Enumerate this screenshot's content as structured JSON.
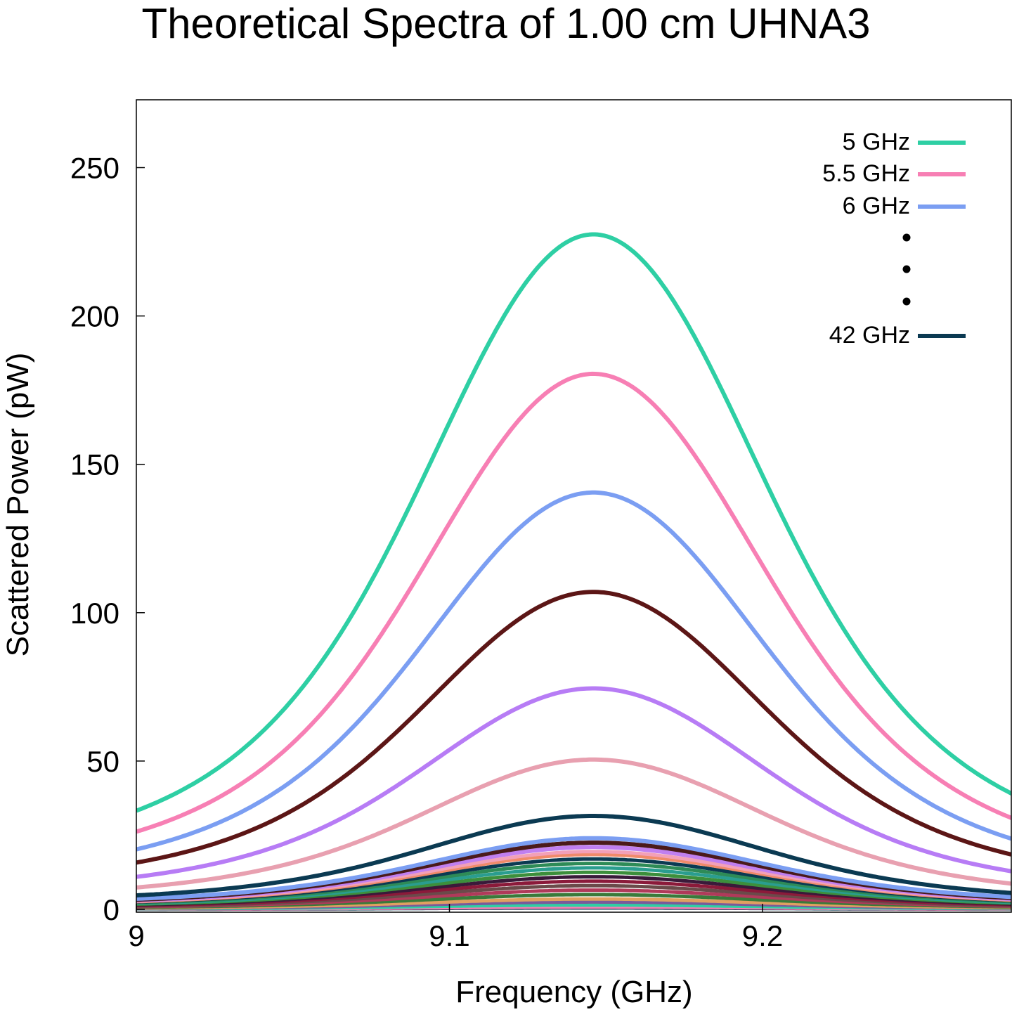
{
  "chart_data": {
    "type": "line",
    "title": "Theoretical Spectra of 1.00 cm UHNA3",
    "xlabel": "Frequency (GHz)",
    "ylabel": "Scattered Power (pW)",
    "xlim": [
      9.0,
      9.28
    ],
    "ylim": [
      0,
      272
    ],
    "xticks": [
      9.0,
      9.1,
      9.2
    ],
    "xtick_labels": [
      "9",
      "9.1",
      "9.2"
    ],
    "yticks": [
      0,
      50,
      100,
      150,
      200,
      250
    ],
    "ytick_labels": [
      "0",
      "50",
      "100",
      "150",
      "200",
      "250"
    ],
    "grid": false,
    "legend_position": "top-right",
    "legend": {
      "entries": [
        {
          "label": "5 GHz",
          "color": "#2ecfa4"
        },
        {
          "label": "5.5 GHz",
          "color": "#f77fb4"
        },
        {
          "label": "6 GHz",
          "color": "#7b9ef2"
        },
        {
          "label": "42 GHz",
          "color": "#0b3a52"
        }
      ],
      "ellipsis_dots": 3
    },
    "center_frequency": 9.146,
    "linewidth_ghz": 0.066,
    "series": [
      {
        "name": "5 GHz",
        "peak": 227.5,
        "baseline": 13.5,
        "color": "#2ecfa4"
      },
      {
        "name": "5.5 GHz",
        "peak": 180.5,
        "baseline": 10.5,
        "color": "#f77fb4"
      },
      {
        "name": "6 GHz",
        "peak": 140.5,
        "baseline": 8.0,
        "color": "#7b9ef2"
      },
      {
        "peak": 107.0,
        "baseline": 6.5,
        "color": "#5c1616"
      },
      {
        "peak": 74.5,
        "baseline": 4.5,
        "color": "#b77cf5"
      },
      {
        "peak": 50.5,
        "baseline": 3.0,
        "color": "#e8a0b0"
      },
      {
        "peak": 31.5,
        "baseline": 2.0,
        "color": "#0b3a52"
      },
      {
        "peak": 24.0,
        "baseline": 1.5,
        "color": "#7b9ef2"
      },
      {
        "peak": 22.5,
        "baseline": 1.3,
        "color": "#4a1a1a"
      },
      {
        "peak": 21.0,
        "baseline": 1.2,
        "color": "#c07ff0"
      },
      {
        "peak": 19.5,
        "baseline": 1.1,
        "color": "#f2a0b8"
      },
      {
        "peak": 18.5,
        "baseline": 1.0,
        "color": "#f08a6a"
      },
      {
        "peak": 17.0,
        "baseline": 1.0,
        "color": "#0b3a52"
      },
      {
        "peak": 15.5,
        "baseline": 0.9,
        "color": "#2e8b57"
      },
      {
        "peak": 14.0,
        "baseline": 0.8,
        "color": "#2a9d8f"
      },
      {
        "peak": 12.5,
        "baseline": 0.7,
        "color": "#3c8f3c"
      },
      {
        "peak": 11.0,
        "baseline": 0.6,
        "color": "#3a1a3a"
      },
      {
        "peak": 9.5,
        "baseline": 0.5,
        "color": "#8b1a3a"
      },
      {
        "peak": 8.0,
        "baseline": 0.4,
        "color": "#6b4a4a"
      },
      {
        "peak": 6.5,
        "baseline": 0.35,
        "color": "#b03a5a"
      },
      {
        "peak": 5.0,
        "baseline": 0.3,
        "color": "#3a7a3a"
      },
      {
        "peak": 3.5,
        "baseline": 0.2,
        "color": "#e0a060"
      },
      {
        "peak": 2.5,
        "baseline": 0.15,
        "color": "#7a5a9a"
      },
      {
        "peak": 1.5,
        "baseline": 0.1,
        "color": "#2ecfa4"
      },
      {
        "peak": 0.8,
        "baseline": 0.05,
        "color": "#f77fb4"
      },
      {
        "peak": 0.5,
        "baseline": 0.03,
        "color": "#0b3a52"
      }
    ]
  }
}
